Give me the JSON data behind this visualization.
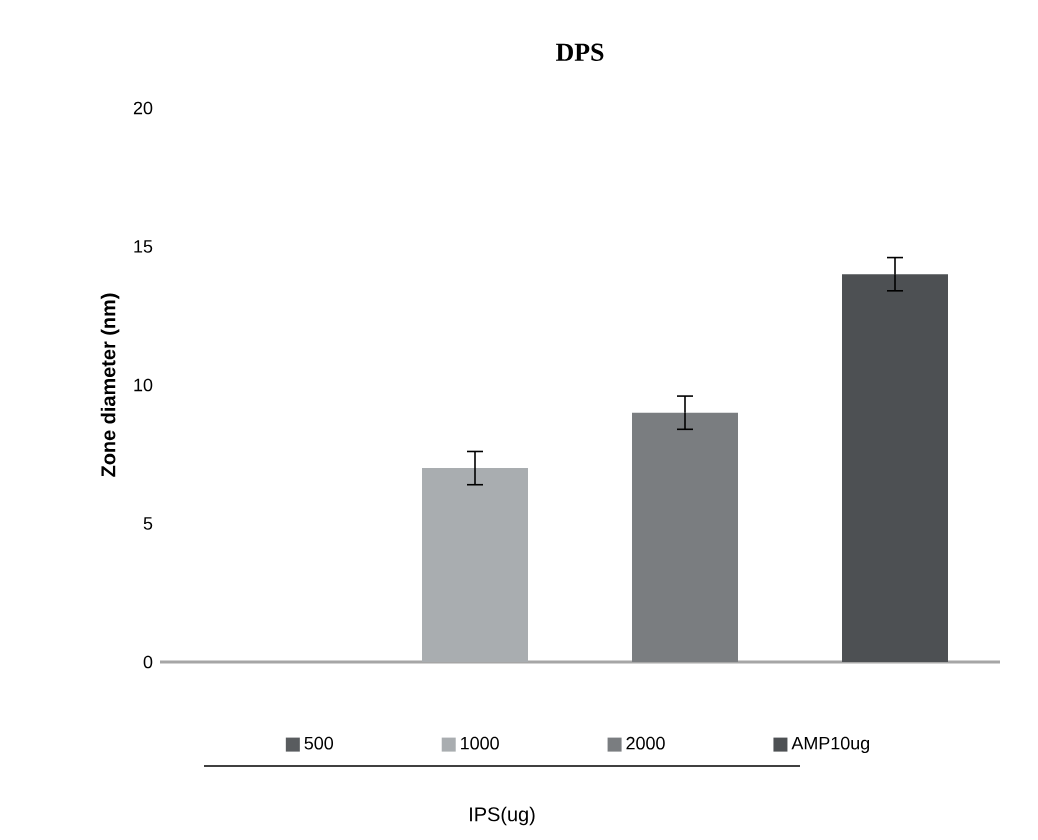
{
  "chart_data": {
    "type": "bar",
    "title": "DPS",
    "ylabel": "Zone diameter (nm)",
    "annotations": [
      "IPS(ug)"
    ],
    "categories": [
      null,
      null,
      null,
      null
    ],
    "series": [
      {
        "name": "500",
        "color": "#595c5f",
        "values": [
          0,
          null,
          null,
          null
        ],
        "errors": [
          null,
          null,
          null,
          null
        ]
      },
      {
        "name": "1000",
        "color": "#a9adb0",
        "values": [
          null,
          7,
          null,
          null
        ],
        "errors": [
          null,
          0.6,
          null,
          null
        ]
      },
      {
        "name": "2000",
        "color": "#7a7d80",
        "values": [
          null,
          null,
          9,
          null
        ],
        "errors": [
          null,
          null,
          0.6,
          null
        ]
      },
      {
        "name": "AMP10ug",
        "color": "#4d5053",
        "values": [
          null,
          null,
          null,
          14
        ],
        "errors": [
          null,
          null,
          null,
          0.6
        ]
      }
    ],
    "ylim": [
      0,
      20
    ],
    "yticks": [
      0,
      5,
      10,
      15,
      20
    ],
    "legend": "bottom",
    "grid": false
  }
}
